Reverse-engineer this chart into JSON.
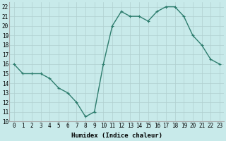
{
  "x": [
    0,
    1,
    2,
    3,
    4,
    5,
    6,
    7,
    8,
    9,
    10,
    11,
    12,
    13,
    14,
    15,
    16,
    17,
    18,
    19,
    20,
    21,
    22,
    23
  ],
  "y": [
    16,
    15,
    15,
    15,
    14.5,
    13.5,
    13,
    12,
    10.5,
    11,
    16,
    20,
    21.5,
    21,
    21,
    20.5,
    21.5,
    22,
    22,
    21,
    19,
    18,
    16.5,
    16
  ],
  "line_color": "#2e7d6e",
  "marker": "+",
  "marker_size": 3,
  "background_color": "#c8eaea",
  "grid_color": "#b0cfcf",
  "xlabel": "Humidex (Indice chaleur)",
  "xlim": [
    -0.5,
    23.5
  ],
  "ylim": [
    10,
    22.5
  ],
  "yticks": [
    10,
    11,
    12,
    13,
    14,
    15,
    16,
    17,
    18,
    19,
    20,
    21,
    22
  ],
  "xticks": [
    0,
    1,
    2,
    3,
    4,
    5,
    6,
    7,
    8,
    9,
    10,
    11,
    12,
    13,
    14,
    15,
    16,
    17,
    18,
    19,
    20,
    21,
    22,
    23
  ],
  "tick_fontsize": 5.5,
  "label_fontsize": 6.5,
  "line_width": 1.0
}
